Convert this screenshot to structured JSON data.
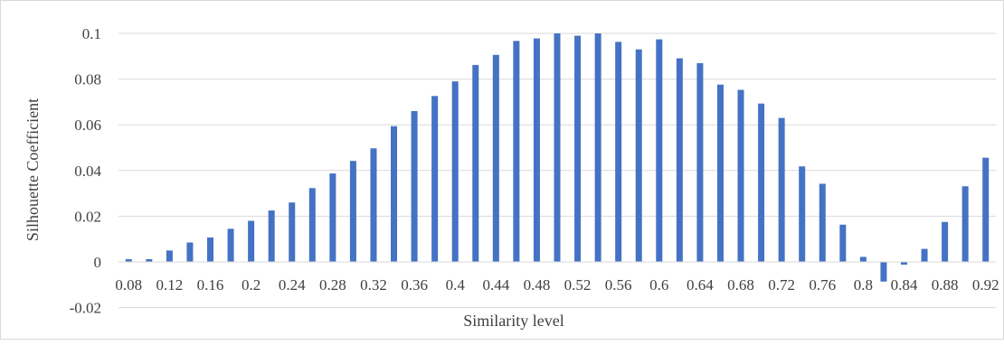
{
  "chart_data": {
    "type": "bar",
    "xlabel": "Similarity level",
    "ylabel": "Silhouette Coefficient",
    "ylim": [
      -0.02,
      0.1
    ],
    "ytick_step": 0.02,
    "y_tick_labels": [
      "-0.02",
      "0",
      "0.02",
      "0.04",
      "0.06",
      "0.08",
      "0.1"
    ],
    "grid": true,
    "legend": "none",
    "bar_color": "#4472C4",
    "categories": [
      "0.08",
      "0.10",
      "0.12",
      "0.14",
      "0.16",
      "0.18",
      "0.2",
      "0.22",
      "0.24",
      "0.26",
      "0.28",
      "0.30",
      "0.32",
      "0.34",
      "0.36",
      "0.38",
      "0.4",
      "0.42",
      "0.44",
      "0.46",
      "0.48",
      "0.50",
      "0.52",
      "0.54",
      "0.56",
      "0.58",
      "0.6",
      "0.62",
      "0.64",
      "0.66",
      "0.68",
      "0.70",
      "0.72",
      "0.74",
      "0.76",
      "0.78",
      "0.8",
      "0.82",
      "0.84",
      "0.86",
      "0.88",
      "0.90",
      "0.92"
    ],
    "x_tick_labels": [
      "0.08",
      "0.12",
      "0.16",
      "0.2",
      "0.24",
      "0.28",
      "0.32",
      "0.36",
      "0.4",
      "0.44",
      "0.48",
      "0.52",
      "0.56",
      "0.6",
      "0.64",
      "0.68",
      "0.72",
      "0.76",
      "0.8",
      "0.84",
      "0.88",
      "0.92"
    ],
    "values": [
      0.0012,
      0.0012,
      0.005,
      0.0085,
      0.0107,
      0.0145,
      0.018,
      0.0225,
      0.026,
      0.0323,
      0.0387,
      0.0442,
      0.0497,
      0.0594,
      0.066,
      0.0726,
      0.079,
      0.0862,
      0.0906,
      0.0967,
      0.0978,
      0.1,
      0.099,
      0.1,
      0.0963,
      0.093,
      0.0974,
      0.0891,
      0.087,
      0.0776,
      0.0753,
      0.0693,
      0.063,
      0.0418,
      0.0342,
      0.0163,
      0.0022,
      -0.0086,
      -0.0012,
      0.0057,
      0.0175,
      0.0331,
      0.0456
    ]
  }
}
